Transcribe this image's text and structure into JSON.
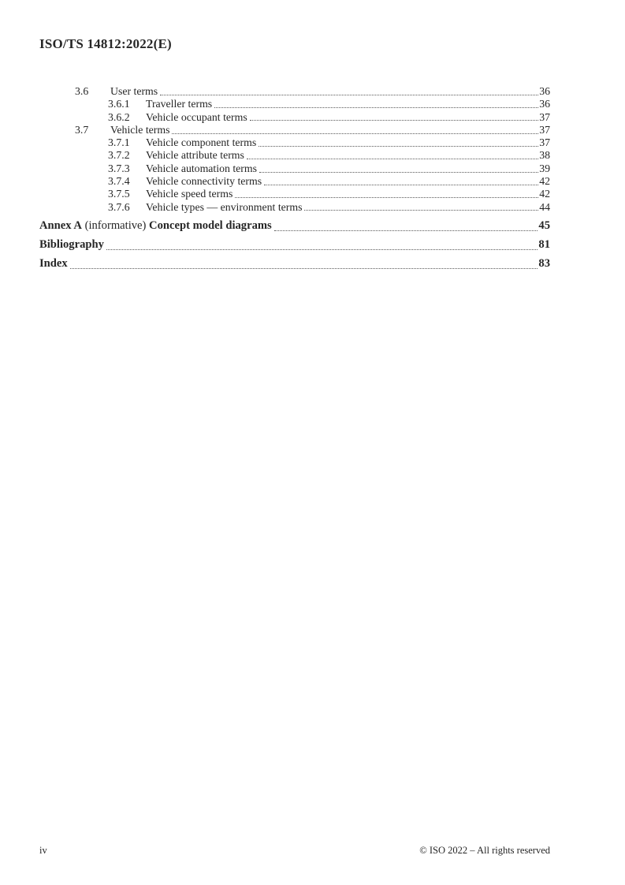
{
  "page": {
    "header": "ISO/TS 14812:2022(E)",
    "footer_left": "iv",
    "footer_right": "© ISO 2022 – All rights reserved"
  },
  "colors": {
    "text": "#262626",
    "leader_dots": "#595959",
    "background": "#ffffff"
  },
  "toc": {
    "entries": [
      {
        "type": "section",
        "number": "3.6",
        "title": "User terms",
        "page": "36"
      },
      {
        "type": "subsection",
        "number": "3.6.1",
        "title": "Traveller terms",
        "page": "36"
      },
      {
        "type": "subsection",
        "number": "3.6.2",
        "title": "Vehicle occupant terms",
        "page": "37"
      },
      {
        "type": "section",
        "number": "3.7",
        "title": "Vehicle terms",
        "page": "37"
      },
      {
        "type": "subsection",
        "number": "3.7.1",
        "title": "Vehicle component terms",
        "page": "37"
      },
      {
        "type": "subsection",
        "number": "3.7.2",
        "title": "Vehicle attribute terms",
        "page": "38"
      },
      {
        "type": "subsection",
        "number": "3.7.3",
        "title": "Vehicle automation terms",
        "page": "39"
      },
      {
        "type": "subsection",
        "number": "3.7.4",
        "title": "Vehicle connectivity terms",
        "page": "42"
      },
      {
        "type": "subsection",
        "number": "3.7.5",
        "title": "Vehicle speed terms",
        "page": "42"
      },
      {
        "type": "subsection",
        "number": "3.7.6",
        "title": "Vehicle types — environment terms",
        "page": "44"
      }
    ],
    "back_matter": [
      {
        "parts": [
          {
            "text": "Annex A",
            "bold": true
          },
          {
            "text": " (informative) ",
            "bold": false
          },
          {
            "text": "Concept model diagrams",
            "bold": true
          }
        ],
        "page": "45"
      },
      {
        "parts": [
          {
            "text": "Bibliography",
            "bold": true
          }
        ],
        "page": "81"
      },
      {
        "parts": [
          {
            "text": "Index",
            "bold": true
          }
        ],
        "page": "83"
      }
    ]
  }
}
